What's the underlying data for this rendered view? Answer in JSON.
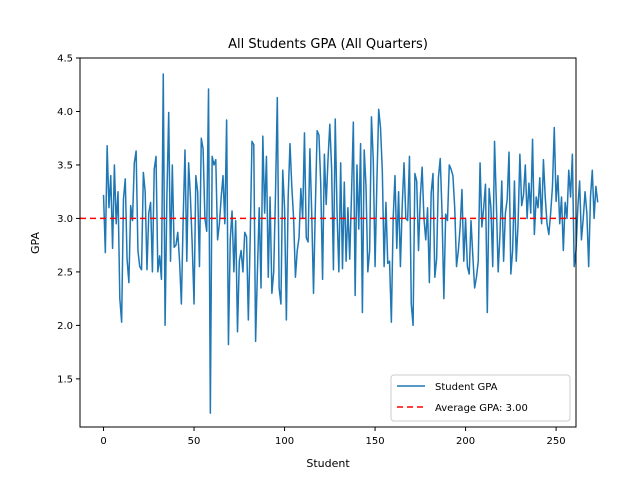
{
  "chart_data": {
    "type": "line",
    "title": "All Students GPA (All Quarters)",
    "xlabel": "Student",
    "ylabel": "GPA",
    "xlim": [
      -13,
      261
    ],
    "ylim": [
      1.05,
      4.5
    ],
    "xticks": [
      0,
      50,
      100,
      150,
      200,
      250
    ],
    "yticks": [
      1.5,
      2.0,
      2.5,
      3.0,
      3.5,
      4.0,
      4.5
    ],
    "xtick_labels": [
      "0",
      "50",
      "100",
      "150",
      "200",
      "250"
    ],
    "ytick_labels": [
      "1.5",
      "2.0",
      "2.5",
      "3.0",
      "3.5",
      "4.0",
      "4.5"
    ],
    "grid": false,
    "legend_position": "lower-right",
    "series": [
      {
        "name": "Student GPA",
        "color": "#1f77b4",
        "style": "solid",
        "x_start": 0,
        "x_step": 1,
        "values": [
          3.22,
          2.68,
          3.68,
          3.1,
          3.4,
          2.72,
          3.5,
          2.95,
          3.25,
          2.25,
          2.03,
          3.18,
          3.37,
          2.62,
          2.4,
          3.12,
          2.98,
          3.52,
          3.63,
          2.7,
          2.55,
          2.52,
          3.43,
          3.25,
          2.52,
          3.05,
          3.15,
          2.5,
          3.46,
          3.58,
          2.5,
          2.65,
          2.43,
          4.35,
          2.0,
          3.2,
          3.99,
          2.6,
          3.5,
          2.73,
          2.75,
          2.87,
          2.6,
          2.2,
          3.0,
          3.64,
          2.6,
          3.52,
          3.2,
          2.75,
          2.2,
          3.4,
          3.25,
          2.55,
          3.75,
          3.65,
          3.0,
          2.88,
          4.21,
          1.18,
          3.58,
          3.5,
          3.55,
          2.8,
          2.95,
          3.2,
          3.4,
          2.95,
          3.92,
          1.82,
          2.8,
          3.07,
          2.5,
          2.98,
          1.94,
          2.6,
          2.7,
          2.5,
          2.87,
          2.83,
          2.05,
          2.8,
          3.72,
          3.69,
          1.85,
          2.5,
          3.1,
          2.35,
          3.77,
          3.05,
          3.58,
          2.45,
          3.2,
          2.3,
          2.5,
          3.23,
          4.13,
          2.35,
          2.2,
          3.45,
          3.1,
          2.05,
          3.2,
          3.7,
          3.3,
          3.0,
          2.45,
          2.7,
          2.82,
          3.28,
          3.0,
          3.8,
          2.82,
          2.78,
          3.65,
          3.05,
          2.3,
          3.1,
          3.82,
          3.78,
          3.32,
          2.43,
          3.6,
          3.13,
          3.55,
          3.88,
          3.47,
          2.52,
          3.93,
          3.05,
          2.5,
          3.52,
          2.53,
          3.34,
          2.6,
          3.1,
          2.62,
          3.23,
          3.9,
          2.28,
          3.5,
          2.9,
          3.7,
          2.12,
          3.64,
          3.3,
          2.5,
          2.7,
          3.95,
          3.55,
          2.55,
          3.34,
          4.02,
          3.85,
          3.45,
          2.55,
          3.15,
          2.58,
          2.6,
          2.03,
          3.0,
          3.4,
          2.72,
          3.25,
          2.55,
          3.12,
          3.52,
          3.0,
          2.98,
          3.58,
          2.2,
          2.0,
          3.42,
          3.35,
          2.7,
          3.2,
          3.48,
          3.0,
          2.8,
          3.1,
          2.4,
          3.24,
          3.42,
          2.45,
          2.62,
          3.38,
          3.56,
          3.05,
          2.25,
          3.04,
          2.98,
          3.5,
          3.46,
          3.4,
          3.1,
          2.55,
          2.7,
          2.92,
          3.27,
          2.6,
          3.0,
          2.55,
          2.48,
          2.98,
          2.65,
          2.35,
          2.45,
          2.6,
          3.52,
          2.92,
          3.1,
          3.32,
          2.12,
          3.28,
          3.1,
          2.55,
          3.72,
          3.15,
          2.5,
          2.85,
          3.35,
          2.6,
          3.05,
          3.18,
          3.62,
          2.48,
          2.7,
          3.35,
          2.6,
          2.95,
          3.6,
          3.12,
          3.22,
          3.5,
          3.0,
          3.33,
          3.05,
          3.74,
          2.85,
          3.2,
          3.1,
          3.38,
          2.95,
          3.55,
          3.2,
          2.95,
          2.85,
          3.05,
          3.3,
          3.85,
          3.16,
          3.4,
          2.95,
          3.2,
          2.7,
          3.15,
          3.0,
          3.45,
          3.2,
          3.6,
          2.55,
          2.7,
          3.1,
          3.35,
          2.8,
          3.0,
          3.25,
          3.05,
          2.55,
          3.2,
          3.45,
          3.0,
          3.3,
          3.15
        ]
      },
      {
        "name": "Average GPA: 3.00",
        "color": "#ff0000",
        "style": "dashed",
        "value": 3.0
      }
    ]
  }
}
